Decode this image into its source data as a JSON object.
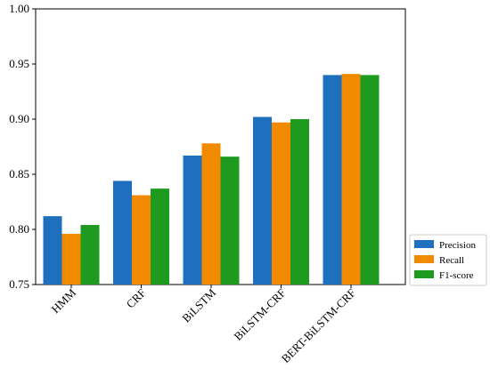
{
  "chart_data": {
    "type": "bar",
    "categories": [
      "HMM",
      "CRF",
      "BiLSTM",
      "BiLSTM-CRF",
      "BERT-BiLSTM-CRF"
    ],
    "series": [
      {
        "name": "Precision",
        "color": "#1f6fbf",
        "values": [
          0.812,
          0.844,
          0.867,
          0.902,
          0.94
        ]
      },
      {
        "name": "Recall",
        "color": "#f28a00",
        "values": [
          0.796,
          0.831,
          0.878,
          0.897,
          0.941
        ]
      },
      {
        "name": "F1-score",
        "color": "#1e9a1e",
        "values": [
          0.804,
          0.837,
          0.866,
          0.9,
          0.94
        ]
      }
    ],
    "ylim": [
      0.75,
      1.0
    ],
    "yticks": [
      0.75,
      {
        "value": 0.8,
        "label": "0.80"
      },
      0.85,
      {
        "value": 0.9,
        "label": "0.90"
      },
      0.95,
      {
        "value": 1.0,
        "label": "1.00"
      }
    ],
    "legend": "lower-right-outside"
  }
}
